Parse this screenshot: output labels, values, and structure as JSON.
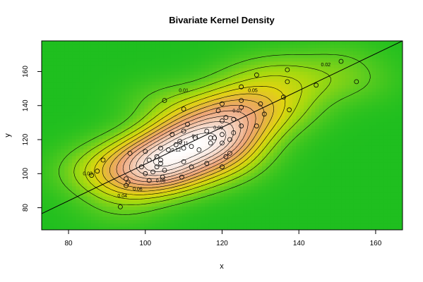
{
  "chart_data": {
    "type": "contour",
    "title": "Bivariate Kernel Density",
    "xlabel": "x",
    "ylabel": "y",
    "xlim": [
      73,
      167
    ],
    "ylim": [
      67,
      178
    ],
    "xticks": [
      "80",
      "100",
      "120",
      "140",
      "160"
    ],
    "yticks": [
      "80",
      "100",
      "120",
      "140",
      "160"
    ],
    "grid": false,
    "colormap": [
      "#1fbf1f",
      "#5ccc1f",
      "#a6d90f",
      "#e0d410",
      "#e6b244",
      "#eea578",
      "#f2c4a8",
      "#f7e4da",
      "#ffffff"
    ],
    "contour_labels": [
      "0.01",
      "0.02",
      "0.03",
      "0.04",
      "0.05",
      "0.06",
      "0.07",
      "0.08",
      "0.09",
      "0.1",
      "0.11",
      "0.12"
    ],
    "regression_line": {
      "x": [
        73,
        167
      ],
      "y": [
        76.5,
        178
      ]
    },
    "points": [
      [
        93.5,
        80.5
      ],
      [
        95,
        93
      ],
      [
        95.5,
        95
      ],
      [
        95,
        97
      ],
      [
        101,
        96
      ],
      [
        104.5,
        98
      ],
      [
        109.5,
        98
      ],
      [
        100,
        100
      ],
      [
        102,
        101
      ],
      [
        105,
        102
      ],
      [
        99,
        104
      ],
      [
        103,
        104
      ],
      [
        104,
        106
      ],
      [
        101,
        108
      ],
      [
        104,
        108
      ],
      [
        103,
        110
      ],
      [
        96,
        112
      ],
      [
        100,
        113
      ],
      [
        104,
        115
      ],
      [
        106,
        114
      ],
      [
        108,
        117
      ],
      [
        109,
        119
      ],
      [
        110,
        115
      ],
      [
        112,
        116
      ],
      [
        110,
        107
      ],
      [
        112,
        104
      ],
      [
        116,
        106
      ],
      [
        120,
        104
      ],
      [
        121,
        110
      ],
      [
        122,
        112
      ],
      [
        114,
        114
      ],
      [
        117,
        118
      ],
      [
        120,
        118
      ],
      [
        122,
        120
      ],
      [
        118,
        121
      ],
      [
        113,
        121
      ],
      [
        110,
        125
      ],
      [
        107,
        123
      ],
      [
        111,
        129
      ],
      [
        117,
        121
      ],
      [
        120,
        123
      ],
      [
        123,
        124
      ],
      [
        125,
        128
      ],
      [
        120,
        131
      ],
      [
        121,
        133
      ],
      [
        123,
        132
      ],
      [
        129,
        128
      ],
      [
        131,
        135
      ],
      [
        119,
        137
      ],
      [
        125,
        139
      ],
      [
        130,
        141
      ],
      [
        120,
        141
      ],
      [
        110,
        138
      ],
      [
        125,
        143
      ],
      [
        105,
        143
      ],
      [
        136,
        145
      ],
      [
        125,
        151
      ],
      [
        129,
        158
      ],
      [
        137,
        154
      ],
      [
        137,
        161
      ],
      [
        137.5,
        137.5
      ],
      [
        144.5,
        152
      ],
      [
        151,
        166
      ],
      [
        155,
        154
      ],
      [
        87.5,
        101.5
      ],
      [
        86,
        99
      ],
      [
        89,
        108
      ],
      [
        116,
        125
      ]
    ]
  }
}
